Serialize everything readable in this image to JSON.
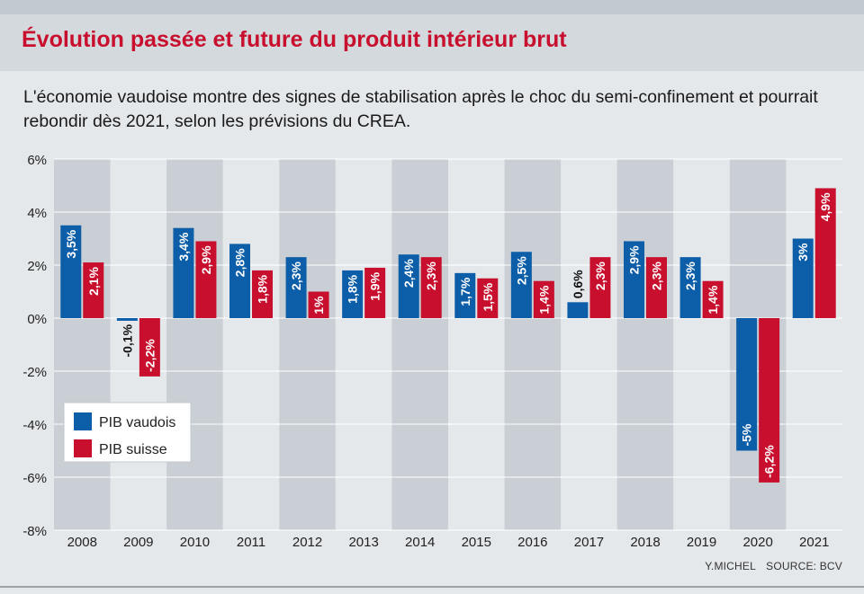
{
  "header": {
    "title": "Évolution passée et future du produit intérieur brut",
    "subtitle": "L'économie vaudoise montre des signes de stabilisation après le choc du semi-confinement et pourrait rebondir dès 2021, selon les prévisions du CREA."
  },
  "credits": {
    "author": "Y.MICHEL",
    "source": "SOURCE: BCV"
  },
  "colors": {
    "vaud": "#0d5ea8",
    "suisse": "#c8102e",
    "band_light": "#e4e8eb",
    "band_dark": "#c9cfd4",
    "grid": "#ffffff"
  },
  "chart_data": {
    "type": "bar",
    "title": "Évolution passée et future du produit intérieur brut",
    "xlabel": "",
    "ylabel": "",
    "ylim": [
      -8,
      6
    ],
    "yticks": [
      6,
      4,
      2,
      0,
      -2,
      -4,
      -6,
      -8
    ],
    "ytick_labels": [
      "6%",
      "4%",
      "2%",
      "0%",
      "-2%",
      "-4%",
      "-6%",
      "-8%"
    ],
    "categories": [
      "2008",
      "2009",
      "2010",
      "2011",
      "2012",
      "2013",
      "2014",
      "2015",
      "2016",
      "2017",
      "2018",
      "2019",
      "2020",
      "2021"
    ],
    "series": [
      {
        "name": "PIB vaudois",
        "values": [
          3.5,
          -0.1,
          3.4,
          2.8,
          2.3,
          1.8,
          2.4,
          1.7,
          2.5,
          0.6,
          2.9,
          2.3,
          -5,
          3
        ],
        "labels": [
          "3,5%",
          "-0,1%",
          "3,4%",
          "2,8%",
          "2,3%",
          "1,8%",
          "2,4%",
          "1,7%",
          "2,5%",
          "0,6%",
          "2,9%",
          "2,3%",
          "-5%",
          "3%"
        ]
      },
      {
        "name": "PIB suisse",
        "values": [
          2.1,
          -2.2,
          2.9,
          1.8,
          1,
          1.9,
          2.3,
          1.5,
          1.4,
          2.3,
          2.3,
          1.4,
          -6.2,
          4.9
        ],
        "labels": [
          "2,1%",
          "-2,2%",
          "2,9%",
          "1,8%",
          "1%",
          "1,9%",
          "2,3%",
          "1,5%",
          "1,4%",
          "2,3%",
          "2,3%",
          "1,4%",
          "-6,2%",
          "4,9%"
        ]
      }
    ],
    "legend": {
      "position": "bottom-left",
      "entries": [
        "PIB vaudois",
        "PIB suisse"
      ]
    }
  }
}
